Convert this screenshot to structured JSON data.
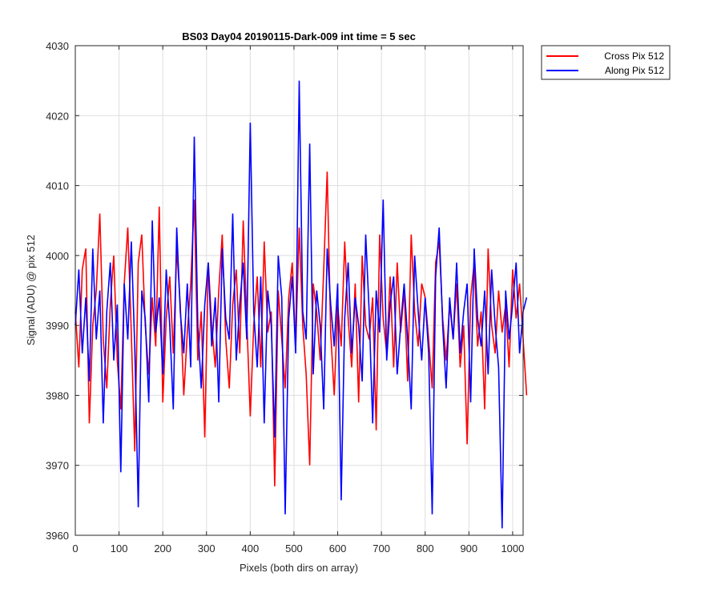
{
  "chart_data": {
    "type": "line",
    "title": "BS03 Day04 20190115-Dark-009 int time = 5 sec",
    "xlabel": "Pixels (both dirs on array)",
    "ylabel": "Signal (ADU) @ pix 512",
    "xlim": [
      0,
      1024
    ],
    "ylim": [
      3960,
      4030
    ],
    "xticks": [
      0,
      100,
      200,
      300,
      400,
      500,
      600,
      700,
      800,
      900,
      1000
    ],
    "yticks": [
      3960,
      3970,
      3980,
      3990,
      4000,
      4010,
      4020,
      4030
    ],
    "grid": true,
    "legend_position": "outside top-right",
    "x_step": 8,
    "series": [
      {
        "name": "Cross Pix 512",
        "color": "#ff0000",
        "values": [
          3992,
          3984,
          3998,
          4001,
          3976,
          3990,
          3995,
          4006,
          3988,
          3981,
          3993,
          4000,
          3985,
          3978,
          3996,
          4004,
          3989,
          3972,
          3999,
          4003,
          3990,
          3983,
          3994,
          3987,
          4007,
          3979,
          3991,
          3997,
          3986,
          4001,
          3993,
          3980,
          3989,
          3996,
          4008,
          3985,
          3992,
          3974,
          3999,
          3990,
          3984,
          3995,
          4003,
          3988,
          3981,
          3993,
          3998,
          3986,
          4005,
          3991,
          3977,
          3990,
          3997,
          3984,
          4002,
          3989,
          3992,
          3967,
          3995,
          3988,
          3981,
          3994,
          3999,
          3987,
          4004,
          3990,
          3983,
          3970,
          3996,
          3992,
          3985,
          3998,
          4012,
          3989,
          3980,
          3993,
          3987,
          4002,
          3991,
          3984,
          3996,
          3979,
          4000,
          3990,
          3988,
          3994,
          3975,
          4003,
          3991,
          3986,
          3997,
          3984,
          3999,
          3989,
          3995,
          3982,
          4003,
          3992,
          3987,
          3996,
          3994,
          3988,
          3981,
          3999,
          4002,
          3991,
          3985,
          3993,
          3988,
          3996,
          3984,
          3990,
          3973,
          3994,
          3999,
          3987,
          3992,
          3978,
          4001,
          3990,
          3986,
          3995,
          3989,
          3993,
          3984,
          3998,
          3991,
          3996,
          3988,
          3980
        ]
      },
      {
        "name": "Along Pix 512",
        "color": "#0000ff",
        "values": [
          3990,
          3998,
          3986,
          3994,
          3982,
          4001,
          3988,
          3995,
          3976,
          3992,
          3999,
          3985,
          3993,
          3969,
          3996,
          3988,
          4002,
          3987,
          3964,
          3995,
          3991,
          3979,
          4005,
          3989,
          3994,
          3983,
          3998,
          3990,
          3978,
          4004,
          3992,
          3986,
          3996,
          3984,
          4017,
          3990,
          3981,
          3993,
          3999,
          3987,
          3994,
          3979,
          4001,
          3991,
          3988,
          4006,
          3985,
          3993,
          3999,
          3988,
          4019,
          3992,
          3984,
          3997,
          3976,
          3995,
          3990,
          3974,
          4000,
          3994,
          3963,
          3991,
          3997,
          3986,
          4025,
          3992,
          3988,
          4016,
          3983,
          3995,
          3990,
          3978,
          4001,
          3993,
          3987,
          3996,
          3965,
          3991,
          3999,
          3986,
          3994,
          3990,
          3982,
          4003,
          3992,
          3976,
          3995,
          3989,
          4008,
          3985,
          3993,
          3997,
          3983,
          3990,
          3996,
          3988,
          3978,
          4000,
          3992,
          3985,
          3994,
          3986,
          3963,
          3997,
          4004,
          3990,
          3981,
          3994,
          3988,
          3999,
          3986,
          3992,
          3996,
          3979,
          4001,
          3991,
          3987,
          3995,
          3983,
          3998,
          3990,
          3984,
          3961,
          3995,
          3988,
          3993,
          3999,
          3986,
          3992,
          3994
        ]
      }
    ]
  }
}
